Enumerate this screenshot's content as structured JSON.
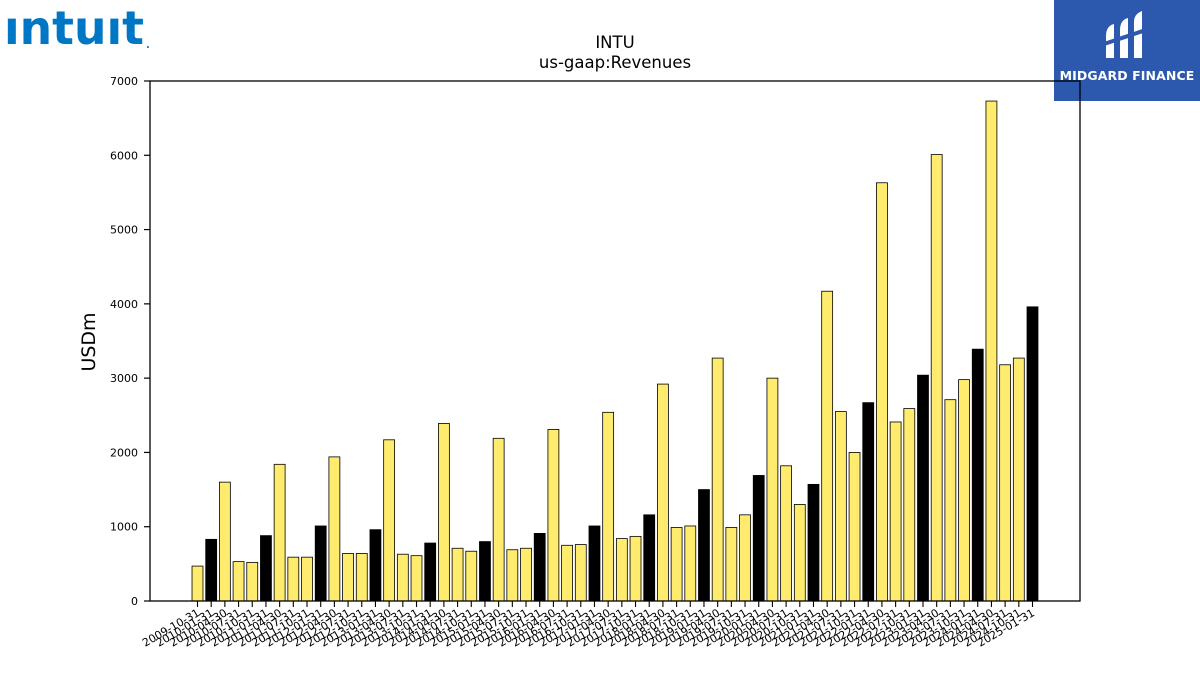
{
  "logo": {
    "text": "ıntuıt",
    "mark": ".",
    "color": "#0077c5"
  },
  "badge": {
    "text": "MIDGARD FINANCE",
    "color": "#2c58ad"
  },
  "chart_data": {
    "type": "bar",
    "title": "INTU",
    "subtitle": "us-gaap:Revenues",
    "xlabel": "",
    "ylabel": "USDm",
    "ylim": [
      0,
      7000
    ],
    "yticks": [
      0,
      1000,
      2000,
      3000,
      4000,
      5000,
      6000,
      7000
    ],
    "grid": false,
    "legend": "none",
    "colors": {
      "quarter": "#ffec6e",
      "annual": "#000000",
      "edge": "#000000"
    },
    "categories": [
      "2009-10-31",
      "2010-01-31",
      "2010-04-30",
      "2010-07-31",
      "2010-10-31",
      "2011-01-31",
      "2011-04-30",
      "2011-07-31",
      "2011-10-31",
      "2012-01-31",
      "2012-04-30",
      "2012-07-31",
      "2012-10-31",
      "2013-01-31",
      "2013-04-30",
      "2013-07-31",
      "2013-10-31",
      "2014-01-31",
      "2014-04-30",
      "2014-07-31",
      "2014-10-31",
      "2015-01-31",
      "2015-04-30",
      "2015-07-31",
      "2015-10-31",
      "2016-01-31",
      "2016-04-30",
      "2016-07-31",
      "2016-10-31",
      "2017-01-31",
      "2017-04-30",
      "2017-07-31",
      "2017-10-31",
      "2018-01-31",
      "2018-04-30",
      "2018-07-31",
      "2018-10-31",
      "2019-01-31",
      "2019-04-30",
      "2019-07-31",
      "2019-10-31",
      "2020-01-31",
      "2020-04-30",
      "2020-07-31",
      "2020-10-31",
      "2021-01-31",
      "2021-04-30",
      "2021-07-31",
      "2021-10-31",
      "2022-01-31",
      "2022-04-30",
      "2022-07-31",
      "2022-10-31",
      "2023-01-31",
      "2023-04-30",
      "2023-07-31",
      "2023-10-31",
      "2024-01-31",
      "2024-04-30",
      "2024-07-31",
      "2024-10-31",
      "2025-01-31"
    ],
    "values": [
      470,
      830,
      1600,
      530,
      520,
      880,
      1840,
      590,
      590,
      1010,
      1940,
      640,
      640,
      960,
      2170,
      630,
      610,
      780,
      2390,
      710,
      670,
      800,
      2190,
      690,
      710,
      910,
      2310,
      750,
      760,
      1010,
      2540,
      840,
      870,
      1160,
      2920,
      990,
      1010,
      1500,
      3270,
      990,
      1160,
      1690,
      3000,
      1820,
      1300,
      1570,
      4170,
      2550,
      2000,
      2670,
      5630,
      2410,
      2590,
      3040,
      6010,
      2710,
      2980,
      3390,
      6730,
      3180,
      3270,
      3960
    ],
    "annual": [
      false,
      true,
      false,
      false,
      false,
      true,
      false,
      false,
      false,
      true,
      false,
      false,
      false,
      true,
      false,
      false,
      false,
      true,
      false,
      false,
      false,
      true,
      false,
      false,
      false,
      true,
      false,
      false,
      false,
      true,
      false,
      false,
      false,
      true,
      false,
      false,
      false,
      true,
      false,
      false,
      false,
      true,
      false,
      false,
      false,
      true,
      false,
      false,
      false,
      true,
      false,
      false,
      false,
      true,
      false,
      false,
      false,
      true,
      false,
      false,
      false,
      true
    ]
  }
}
